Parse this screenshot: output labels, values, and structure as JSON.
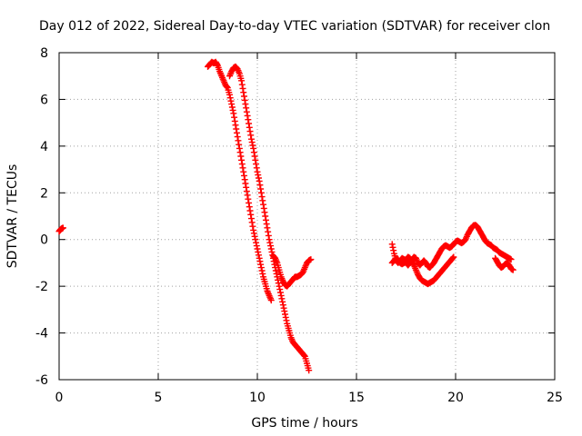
{
  "chart_data": {
    "type": "scatter",
    "title": "Day 012 of 2022, Sidereal Day-to-day VTEC variation (SDTVAR) for receiver clon",
    "xlabel": "GPS time / hours",
    "ylabel": "SDTVAR / TECUs",
    "xlim": [
      0,
      25
    ],
    "ylim": [
      -6,
      8
    ],
    "xticks": [
      0,
      5,
      10,
      15,
      20,
      25
    ],
    "yticks": [
      -6,
      -4,
      -2,
      0,
      2,
      4,
      6,
      8
    ],
    "grid": true,
    "marker": "+",
    "series": [
      {
        "name": "SDTVAR",
        "color": "#ff0000",
        "segments": [
          [
            [
              0.0,
              0.35
            ],
            [
              0.05,
              0.4
            ],
            [
              0.1,
              0.45
            ],
            [
              0.15,
              0.48
            ],
            [
              0.2,
              0.5
            ]
          ],
          [
            [
              7.5,
              7.4
            ],
            [
              7.6,
              7.5
            ],
            [
              7.7,
              7.6
            ],
            [
              7.8,
              7.55
            ],
            [
              7.9,
              7.6
            ],
            [
              8.0,
              7.45
            ],
            [
              8.1,
              7.2
            ],
            [
              8.2,
              7.0
            ],
            [
              8.3,
              6.8
            ],
            [
              8.4,
              6.6
            ],
            [
              8.5,
              6.5
            ],
            [
              8.6,
              6.2
            ],
            [
              8.7,
              5.8
            ],
            [
              8.8,
              5.4
            ],
            [
              8.9,
              4.9
            ],
            [
              9.0,
              4.4
            ],
            [
              9.1,
              3.9
            ],
            [
              9.2,
              3.4
            ],
            [
              9.3,
              2.9
            ],
            [
              9.4,
              2.4
            ],
            [
              9.5,
              1.9
            ],
            [
              9.6,
              1.4
            ],
            [
              9.7,
              0.9
            ],
            [
              9.8,
              0.4
            ],
            [
              9.9,
              0.0
            ],
            [
              10.0,
              -0.4
            ],
            [
              10.1,
              -0.8
            ],
            [
              10.2,
              -1.2
            ],
            [
              10.3,
              -1.6
            ],
            [
              10.4,
              -1.9
            ],
            [
              10.5,
              -2.2
            ],
            [
              10.6,
              -2.4
            ],
            [
              10.7,
              -2.6
            ]
          ],
          [
            [
              8.6,
              7.0
            ],
            [
              8.7,
              7.2
            ],
            [
              8.8,
              7.35
            ],
            [
              8.9,
              7.4
            ],
            [
              9.0,
              7.3
            ],
            [
              9.1,
              7.1
            ],
            [
              9.2,
              6.8
            ],
            [
              9.3,
              6.3
            ],
            [
              9.4,
              5.8
            ],
            [
              9.5,
              5.3
            ],
            [
              9.6,
              4.8
            ],
            [
              9.7,
              4.3
            ],
            [
              9.8,
              3.9
            ],
            [
              9.9,
              3.4
            ],
            [
              10.0,
              2.9
            ],
            [
              10.1,
              2.5
            ],
            [
              10.2,
              2.0
            ],
            [
              10.3,
              1.5
            ],
            [
              10.4,
              1.0
            ],
            [
              10.5,
              0.5
            ],
            [
              10.6,
              0.0
            ],
            [
              10.7,
              -0.4
            ],
            [
              10.8,
              -0.8
            ],
            [
              10.9,
              -1.2
            ],
            [
              11.0,
              -1.6
            ],
            [
              11.1,
              -2.0
            ],
            [
              11.2,
              -2.4
            ],
            [
              11.3,
              -2.8
            ],
            [
              11.4,
              -3.2
            ],
            [
              11.5,
              -3.6
            ],
            [
              11.6,
              -3.9
            ],
            [
              11.7,
              -4.2
            ],
            [
              11.8,
              -4.4
            ],
            [
              11.9,
              -4.5
            ],
            [
              12.0,
              -4.6
            ],
            [
              12.1,
              -4.7
            ],
            [
              12.2,
              -4.8
            ],
            [
              12.3,
              -4.9
            ],
            [
              12.4,
              -5.0
            ],
            [
              12.5,
              -5.3
            ],
            [
              12.6,
              -5.6
            ]
          ],
          [
            [
              10.8,
              -0.7
            ],
            [
              10.9,
              -0.8
            ],
            [
              11.0,
              -1.0
            ],
            [
              11.1,
              -1.3
            ],
            [
              11.2,
              -1.6
            ],
            [
              11.3,
              -1.8
            ],
            [
              11.4,
              -1.95
            ],
            [
              11.5,
              -2.0
            ],
            [
              11.6,
              -1.9
            ],
            [
              11.7,
              -1.8
            ],
            [
              11.8,
              -1.7
            ],
            [
              11.9,
              -1.6
            ],
            [
              12.0,
              -1.6
            ],
            [
              12.1,
              -1.55
            ],
            [
              12.2,
              -1.5
            ],
            [
              12.3,
              -1.4
            ],
            [
              12.4,
              -1.2
            ],
            [
              12.5,
              -1.0
            ],
            [
              12.6,
              -0.9
            ],
            [
              12.7,
              -0.85
            ]
          ],
          [
            [
              16.8,
              -0.2
            ],
            [
              16.9,
              -0.6
            ],
            [
              17.0,
              -0.9
            ],
            [
              17.1,
              -1.0
            ],
            [
              17.2,
              -0.9
            ],
            [
              17.3,
              -0.8
            ],
            [
              17.4,
              -0.85
            ],
            [
              17.5,
              -1.0
            ],
            [
              17.6,
              -1.1
            ],
            [
              17.7,
              -1.0
            ],
            [
              17.8,
              -0.85
            ],
            [
              17.9,
              -0.75
            ],
            [
              18.0,
              -0.8
            ],
            [
              18.1,
              -1.0
            ],
            [
              18.2,
              -1.1
            ],
            [
              18.3,
              -1.0
            ],
            [
              18.4,
              -0.9
            ],
            [
              18.5,
              -1.0
            ],
            [
              18.6,
              -1.15
            ],
            [
              18.7,
              -1.2
            ],
            [
              18.8,
              -1.1
            ],
            [
              18.9,
              -1.0
            ],
            [
              19.0,
              -0.85
            ],
            [
              19.1,
              -0.7
            ],
            [
              19.2,
              -0.55
            ],
            [
              19.3,
              -0.4
            ],
            [
              19.4,
              -0.3
            ],
            [
              19.5,
              -0.25
            ],
            [
              19.6,
              -0.3
            ],
            [
              19.7,
              -0.35
            ],
            [
              19.8,
              -0.3
            ],
            [
              19.9,
              -0.2
            ],
            [
              20.0,
              -0.1
            ],
            [
              20.1,
              -0.05
            ],
            [
              20.2,
              -0.1
            ],
            [
              20.3,
              -0.15
            ],
            [
              20.4,
              -0.1
            ],
            [
              20.5,
              0.0
            ],
            [
              20.6,
              0.2
            ],
            [
              20.7,
              0.35
            ],
            [
              20.8,
              0.5
            ],
            [
              20.9,
              0.6
            ],
            [
              21.0,
              0.62
            ],
            [
              21.1,
              0.55
            ],
            [
              21.2,
              0.4
            ],
            [
              21.3,
              0.25
            ],
            [
              21.4,
              0.1
            ],
            [
              21.5,
              -0.05
            ],
            [
              21.6,
              -0.15
            ],
            [
              21.7,
              -0.2
            ],
            [
              21.8,
              -0.25
            ],
            [
              21.9,
              -0.35
            ],
            [
              22.0,
              -0.4
            ],
            [
              22.1,
              -0.45
            ],
            [
              22.2,
              -0.55
            ],
            [
              22.3,
              -0.6
            ],
            [
              22.4,
              -0.65
            ],
            [
              22.5,
              -0.7
            ],
            [
              22.6,
              -0.75
            ],
            [
              22.7,
              -0.8
            ],
            [
              22.8,
              -0.85
            ]
          ],
          [
            [
              16.8,
              -1.0
            ],
            [
              16.9,
              -0.9
            ],
            [
              17.0,
              -0.8
            ],
            [
              17.1,
              -0.85
            ],
            [
              17.2,
              -1.0
            ],
            [
              17.3,
              -1.05
            ],
            [
              17.4,
              -1.0
            ],
            [
              17.5,
              -0.85
            ],
            [
              17.6,
              -0.75
            ],
            [
              17.7,
              -0.8
            ],
            [
              17.8,
              -0.95
            ],
            [
              17.9,
              -1.1
            ],
            [
              18.0,
              -1.3
            ],
            [
              18.1,
              -1.5
            ],
            [
              18.2,
              -1.65
            ],
            [
              18.3,
              -1.75
            ],
            [
              18.4,
              -1.8
            ],
            [
              18.5,
              -1.85
            ],
            [
              18.6,
              -1.9
            ],
            [
              18.7,
              -1.85
            ],
            [
              18.8,
              -1.8
            ],
            [
              18.9,
              -1.75
            ],
            [
              19.0,
              -1.65
            ],
            [
              19.1,
              -1.55
            ],
            [
              19.2,
              -1.45
            ],
            [
              19.3,
              -1.35
            ],
            [
              19.4,
              -1.25
            ],
            [
              19.5,
              -1.15
            ],
            [
              19.6,
              -1.05
            ],
            [
              19.7,
              -0.95
            ],
            [
              19.8,
              -0.85
            ],
            [
              19.9,
              -0.75
            ]
          ],
          [
            [
              22.0,
              -0.8
            ],
            [
              22.1,
              -0.95
            ],
            [
              22.2,
              -1.1
            ],
            [
              22.3,
              -1.2
            ],
            [
              22.4,
              -1.15
            ],
            [
              22.5,
              -1.05
            ],
            [
              22.6,
              -1.0
            ],
            [
              22.7,
              -1.1
            ],
            [
              22.8,
              -1.25
            ],
            [
              22.9,
              -1.3
            ]
          ]
        ]
      }
    ]
  }
}
